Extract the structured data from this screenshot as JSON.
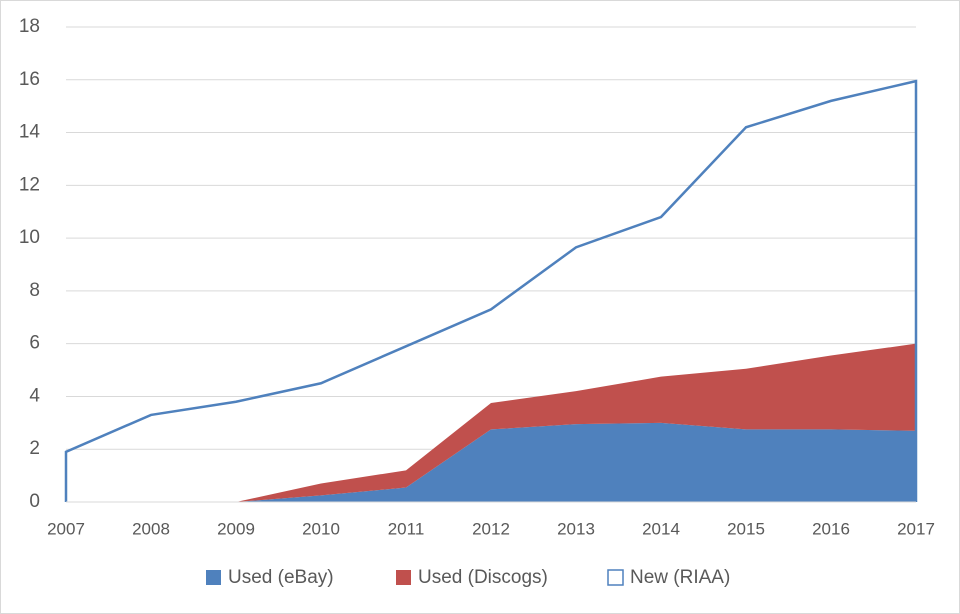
{
  "chart_data": {
    "type": "area",
    "categories": [
      "2007",
      "2008",
      "2009",
      "2010",
      "2011",
      "2012",
      "2013",
      "2014",
      "2015",
      "2016",
      "2017"
    ],
    "series": [
      {
        "name": "Used (eBay)",
        "color": "#4f81bd",
        "stack": true,
        "values": [
          0,
          0,
          0,
          0.25,
          0.55,
          2.75,
          2.95,
          3.0,
          2.75,
          2.75,
          2.7
        ]
      },
      {
        "name": "Used (Discogs)",
        "color": "#c0504d",
        "stack": true,
        "values": [
          0,
          0,
          0,
          0.45,
          0.65,
          1.0,
          1.25,
          1.75,
          2.3,
          2.8,
          3.3
        ]
      },
      {
        "name": "New (RIAA)",
        "color": "#4f81bd",
        "stack": false,
        "fill": "none",
        "values": [
          1.9,
          3.3,
          3.8,
          4.5,
          5.9,
          7.3,
          9.65,
          10.8,
          14.2,
          15.2,
          15.95
        ]
      }
    ],
    "ylim": [
      0,
      18
    ],
    "yticks": [
      0,
      2,
      4,
      6,
      8,
      10,
      12,
      14,
      16,
      18
    ],
    "grid": true,
    "legend": "bottom"
  }
}
